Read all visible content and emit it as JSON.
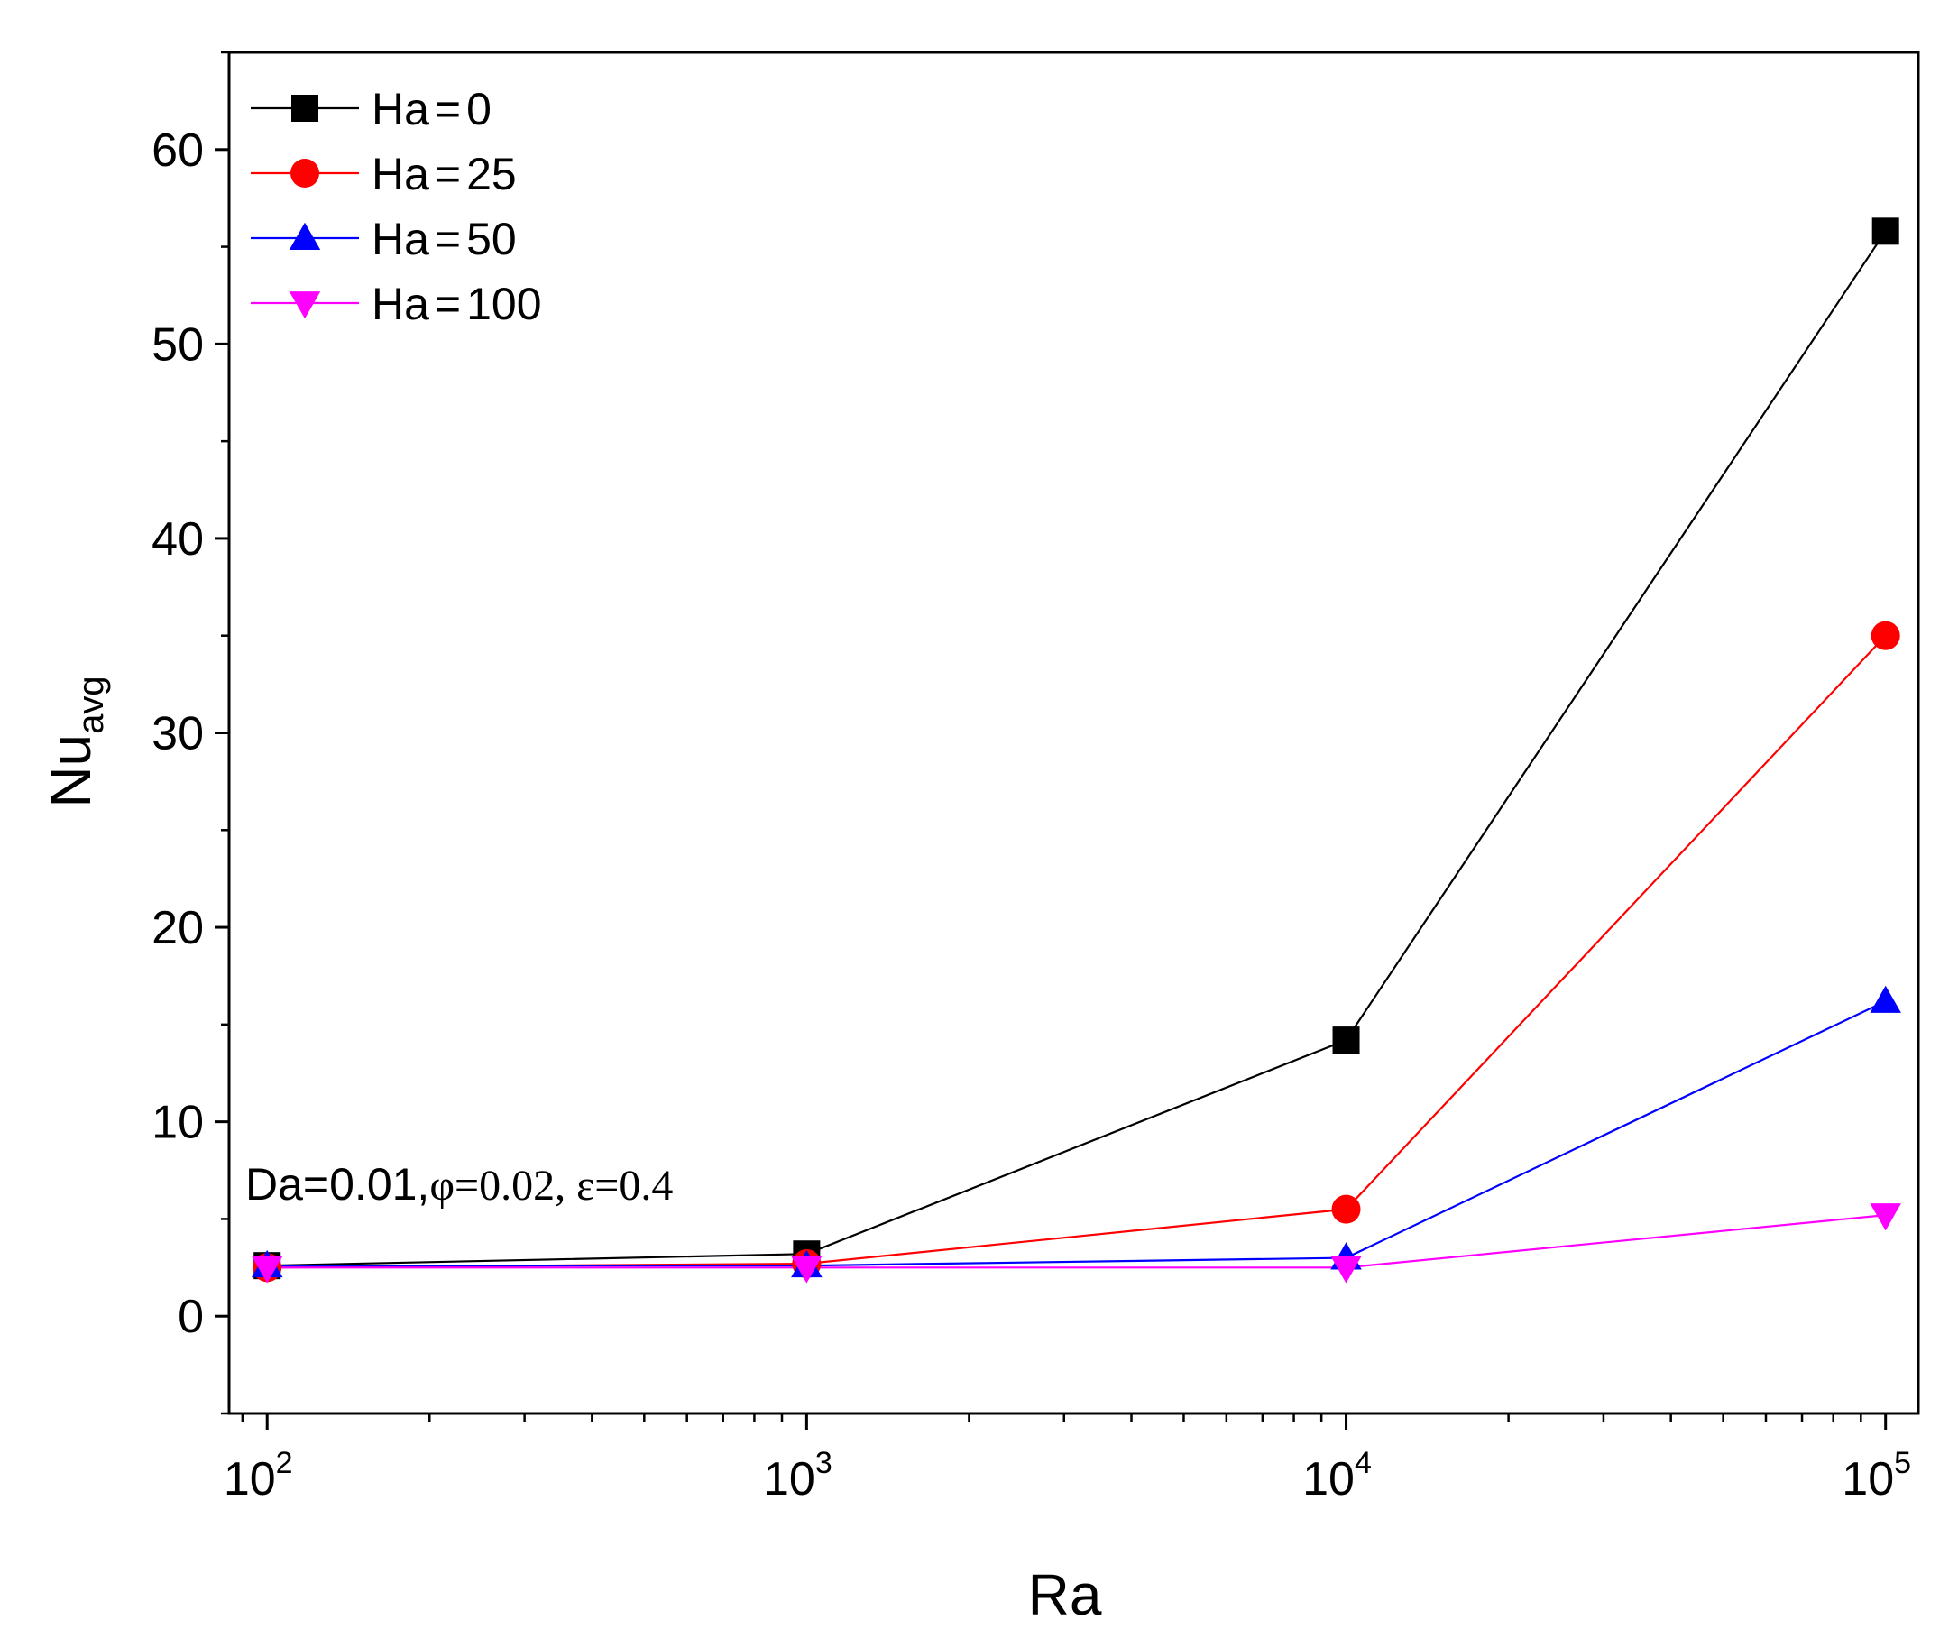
{
  "chart_data": {
    "type": "line",
    "x_scale": "log",
    "xlabel": "Ra",
    "ylabel": "Nu",
    "ylabel_subscript": "avg",
    "xlim": [
      85,
      115000
    ],
    "ylim": [
      -5,
      65
    ],
    "x_ticks": [
      {
        "base": "10",
        "exp": "2",
        "value": 100
      },
      {
        "base": "10",
        "exp": "3",
        "value": 1000
      },
      {
        "base": "10",
        "exp": "4",
        "value": 10000
      },
      {
        "base": "10",
        "exp": "5",
        "value": 100000
      }
    ],
    "y_ticks": [
      "0",
      "10",
      "20",
      "30",
      "40",
      "50",
      "60"
    ],
    "y_ticks_values": [
      0,
      10,
      20,
      30,
      40,
      50,
      60
    ],
    "x": [
      100,
      1000,
      10000,
      100000
    ],
    "series": [
      {
        "name": "Ha=0",
        "label_prefix": "Ha",
        "label_eq": "=",
        "label_value": "0",
        "color": "#000000",
        "marker": "square",
        "values": [
          2.6,
          3.2,
          14.2,
          55.8
        ]
      },
      {
        "name": "Ha=25",
        "label_prefix": "Ha",
        "label_eq": "=",
        "label_value": "25",
        "color": "#ff0000",
        "marker": "circle",
        "values": [
          2.5,
          2.7,
          5.5,
          35.0
        ]
      },
      {
        "name": "Ha=50",
        "label_prefix": "Ha",
        "label_eq": "=",
        "label_value": "50",
        "color": "#0000ff",
        "marker": "triangle-up",
        "values": [
          2.6,
          2.6,
          3.0,
          16.2
        ]
      },
      {
        "name": "Ha=100",
        "label_prefix": "Ha",
        "label_eq": "=",
        "label_value": "100",
        "color": "#ff00ff",
        "marker": "triangle-down",
        "values": [
          2.5,
          2.5,
          2.5,
          5.2
        ]
      }
    ],
    "annotation": {
      "part1": "Da=0.01,",
      "part2": "φ=0.02, ε=0.4"
    },
    "legend_position": "top-left",
    "grid": false
  }
}
